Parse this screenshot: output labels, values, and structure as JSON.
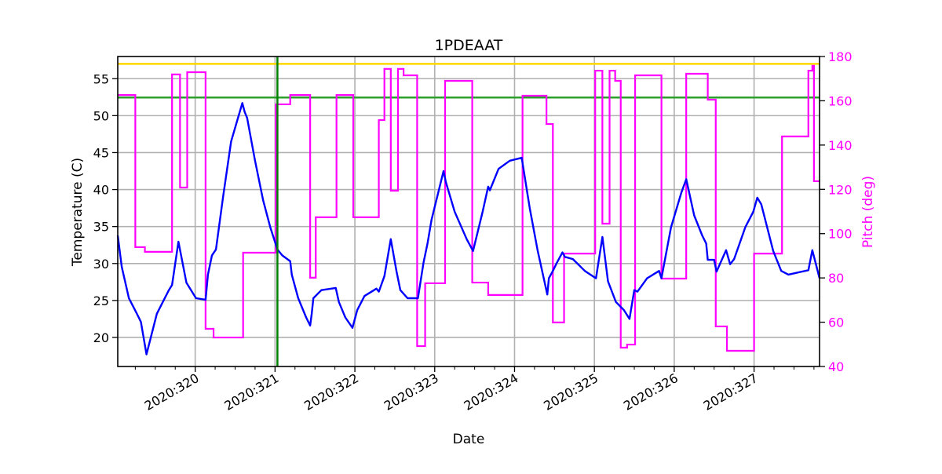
{
  "chart_data": {
    "type": "line",
    "title": "1PDEAAT",
    "xlabel": "Date",
    "ylabel": "Temperature (C)",
    "y2label": "Pitch (deg)",
    "xlim": [
      319.03,
      327.82
    ],
    "ylim": [
      16.07,
      58.0
    ],
    "y2lim": [
      40,
      180
    ],
    "grid": true,
    "x_ticks": [
      320,
      321,
      322,
      323,
      324,
      325,
      326,
      327
    ],
    "x_tick_labels": [
      "2020:320",
      "2020:321",
      "2020:322",
      "2020:323",
      "2020:324",
      "2020:325",
      "2020:326",
      "2020:327"
    ],
    "y_ticks": [
      20,
      25,
      30,
      35,
      40,
      45,
      50,
      55
    ],
    "y2_ticks": [
      40,
      60,
      80,
      100,
      120,
      140,
      160,
      180
    ],
    "colors": {
      "temperature": "#0000ff",
      "pitch": "#ff00ff",
      "upper_limit": "#ffd700",
      "planning_limit": "#2ca02c",
      "now_marker": "#008000",
      "grid": "#b0b0b0",
      "y2_axis_text": "#ff00ff"
    },
    "reference_lines": {
      "upper_limit_temp": 57.0,
      "planning_limit_temp": 52.45,
      "vertical_date": 321.03
    },
    "temperature": [
      [
        319.03,
        33.8
      ],
      [
        319.08,
        29.55
      ],
      [
        319.17,
        25.3
      ],
      [
        319.27,
        23.2
      ],
      [
        319.32,
        22.1
      ],
      [
        319.39,
        17.7
      ],
      [
        319.52,
        23.2
      ],
      [
        319.67,
        26.4
      ],
      [
        319.71,
        27.1
      ],
      [
        319.79,
        32.95
      ],
      [
        319.89,
        27.4
      ],
      [
        320.01,
        25.3
      ],
      [
        320.13,
        25.1
      ],
      [
        320.16,
        28.5
      ],
      [
        320.21,
        31.1
      ],
      [
        320.26,
        31.9
      ],
      [
        320.35,
        39.1
      ],
      [
        320.45,
        46.5
      ],
      [
        320.59,
        51.7
      ],
      [
        320.62,
        50.5
      ],
      [
        320.65,
        49.7
      ],
      [
        320.75,
        43.9
      ],
      [
        320.85,
        38.6
      ],
      [
        320.94,
        34.9
      ],
      [
        321.03,
        31.9
      ],
      [
        321.09,
        31.1
      ],
      [
        321.19,
        30.3
      ],
      [
        321.21,
        28.5
      ],
      [
        321.29,
        25.3
      ],
      [
        321.39,
        22.7
      ],
      [
        321.44,
        21.6
      ],
      [
        321.46,
        23.2
      ],
      [
        321.48,
        25.3
      ],
      [
        321.58,
        26.4
      ],
      [
        321.76,
        26.7
      ],
      [
        321.8,
        24.8
      ],
      [
        321.88,
        22.7
      ],
      [
        321.97,
        21.3
      ],
      [
        322.03,
        23.7
      ],
      [
        322.12,
        25.6
      ],
      [
        322.27,
        26.6
      ],
      [
        322.3,
        26.2
      ],
      [
        322.37,
        28.3
      ],
      [
        322.45,
        33.3
      ],
      [
        322.52,
        29.0
      ],
      [
        322.57,
        26.4
      ],
      [
        322.66,
        25.3
      ],
      [
        322.79,
        25.3
      ],
      [
        322.86,
        30.1
      ],
      [
        322.91,
        32.7
      ],
      [
        322.96,
        35.9
      ],
      [
        323.11,
        42.5
      ],
      [
        323.14,
        41.0
      ],
      [
        323.25,
        37.0
      ],
      [
        323.4,
        33.3
      ],
      [
        323.48,
        31.7
      ],
      [
        323.6,
        37.0
      ],
      [
        323.67,
        40.4
      ],
      [
        323.69,
        39.9
      ],
      [
        323.8,
        42.8
      ],
      [
        323.94,
        43.9
      ],
      [
        324.09,
        44.3
      ],
      [
        324.19,
        37.5
      ],
      [
        324.29,
        31.7
      ],
      [
        324.41,
        25.8
      ],
      [
        324.43,
        28.0
      ],
      [
        324.48,
        29.0
      ],
      [
        324.53,
        30.1
      ],
      [
        324.6,
        31.5
      ],
      [
        324.63,
        30.9
      ],
      [
        324.73,
        30.6
      ],
      [
        324.88,
        29.0
      ],
      [
        325.02,
        28.0
      ],
      [
        325.1,
        33.6
      ],
      [
        325.17,
        27.6
      ],
      [
        325.27,
        24.8
      ],
      [
        325.37,
        23.7
      ],
      [
        325.44,
        22.5
      ],
      [
        325.5,
        26.4
      ],
      [
        325.54,
        26.2
      ],
      [
        325.66,
        28.0
      ],
      [
        325.81,
        29.0
      ],
      [
        325.84,
        28.0
      ],
      [
        325.96,
        34.9
      ],
      [
        326.09,
        39.6
      ],
      [
        326.15,
        41.4
      ],
      [
        326.25,
        36.5
      ],
      [
        326.35,
        33.8
      ],
      [
        326.4,
        32.7
      ],
      [
        326.42,
        30.5
      ],
      [
        326.5,
        30.5
      ],
      [
        326.53,
        28.9
      ],
      [
        326.6,
        30.6
      ],
      [
        326.65,
        31.8
      ],
      [
        326.7,
        29.9
      ],
      [
        326.75,
        30.6
      ],
      [
        326.89,
        34.9
      ],
      [
        326.99,
        37.0
      ],
      [
        327.04,
        38.9
      ],
      [
        327.09,
        38.0
      ],
      [
        327.24,
        31.7
      ],
      [
        327.34,
        29.0
      ],
      [
        327.43,
        28.5
      ],
      [
        327.68,
        29.1
      ],
      [
        327.73,
        31.8
      ],
      [
        327.82,
        28.0
      ]
    ],
    "pitch": [
      [
        319.03,
        162.6
      ],
      [
        319.25,
        93.9
      ],
      [
        319.37,
        91.8
      ],
      [
        319.71,
        171.9
      ],
      [
        319.81,
        120.8
      ],
      [
        319.9,
        172.9
      ],
      [
        320.13,
        57.0
      ],
      [
        320.23,
        53.1
      ],
      [
        320.6,
        91.4
      ],
      [
        321.01,
        158.4
      ],
      [
        321.19,
        162.6
      ],
      [
        321.44,
        80.1
      ],
      [
        321.51,
        107.4
      ],
      [
        321.77,
        162.6
      ],
      [
        321.98,
        107.4
      ],
      [
        322.3,
        151.3
      ],
      [
        322.37,
        174.4
      ],
      [
        322.45,
        119.4
      ],
      [
        322.54,
        174.4
      ],
      [
        322.61,
        171.5
      ],
      [
        322.78,
        49.2
      ],
      [
        322.88,
        77.6
      ],
      [
        323.13,
        169.0
      ],
      [
        323.47,
        77.9
      ],
      [
        323.67,
        72.3
      ],
      [
        324.1,
        162.3
      ],
      [
        324.4,
        149.5
      ],
      [
        324.48,
        59.9
      ],
      [
        324.62,
        91.0
      ],
      [
        325.01,
        173.6
      ],
      [
        325.1,
        104.5
      ],
      [
        325.19,
        173.6
      ],
      [
        325.26,
        169.0
      ],
      [
        325.33,
        48.5
      ],
      [
        325.41,
        49.9
      ],
      [
        325.51,
        171.5
      ],
      [
        325.84,
        79.7
      ],
      [
        326.15,
        172.2
      ],
      [
        326.42,
        160.5
      ],
      [
        326.52,
        58.1
      ],
      [
        326.66,
        47.1
      ],
      [
        327.0,
        91.0
      ],
      [
        327.35,
        143.9
      ],
      [
        327.68,
        173.6
      ],
      [
        327.73,
        175.8
      ],
      [
        327.75,
        123.7
      ],
      [
        327.82,
        123.7
      ]
    ]
  }
}
